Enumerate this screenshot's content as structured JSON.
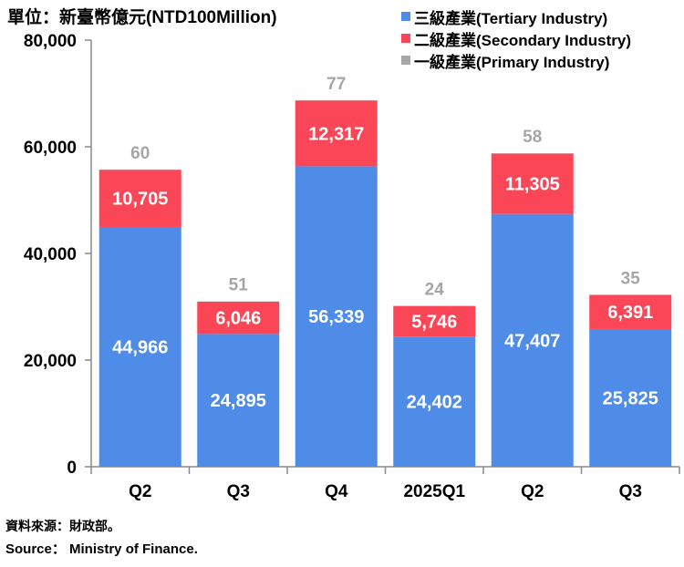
{
  "chart_data": {
    "type": "bar",
    "stacked": true,
    "unit_label": "單位：新臺幣億元(NTD100Million)",
    "categories": [
      "Q2",
      "Q3",
      "Q4",
      "2025Q1",
      "Q2",
      "Q3"
    ],
    "series": [
      {
        "name": "三級產業(Tertiary Industry)",
        "color": "#4f8ce8",
        "values": [
          44966,
          24895,
          56339,
          24402,
          47407,
          25825
        ]
      },
      {
        "name": "二級產業(Secondary Industry)",
        "color": "#fa4657",
        "values": [
          10705,
          6046,
          12317,
          5746,
          11305,
          6391
        ]
      },
      {
        "name": "一級產業(Primary Industry)",
        "color": "#a6a6a6",
        "values": [
          60,
          51,
          77,
          24,
          58,
          35
        ]
      }
    ],
    "data_labels": [
      [
        "44,966",
        "24,895",
        "56,339",
        "24,402",
        "47,407",
        "25,825"
      ],
      [
        "10,705",
        "6,046",
        "12,317",
        "5,746",
        "11,305",
        "6,391"
      ],
      [
        "60",
        "51",
        "77",
        "24",
        "58",
        "35"
      ]
    ],
    "ylim": [
      0,
      80000
    ],
    "yticks": [
      0,
      20000,
      40000,
      60000,
      80000
    ],
    "ytick_labels": [
      "0",
      "20,000",
      "40,000",
      "60,000",
      "80,000"
    ],
    "legend_position": "top-right"
  },
  "source": {
    "chinese": "資料來源：財政部。",
    "english": "Source： Ministry of Finance."
  }
}
